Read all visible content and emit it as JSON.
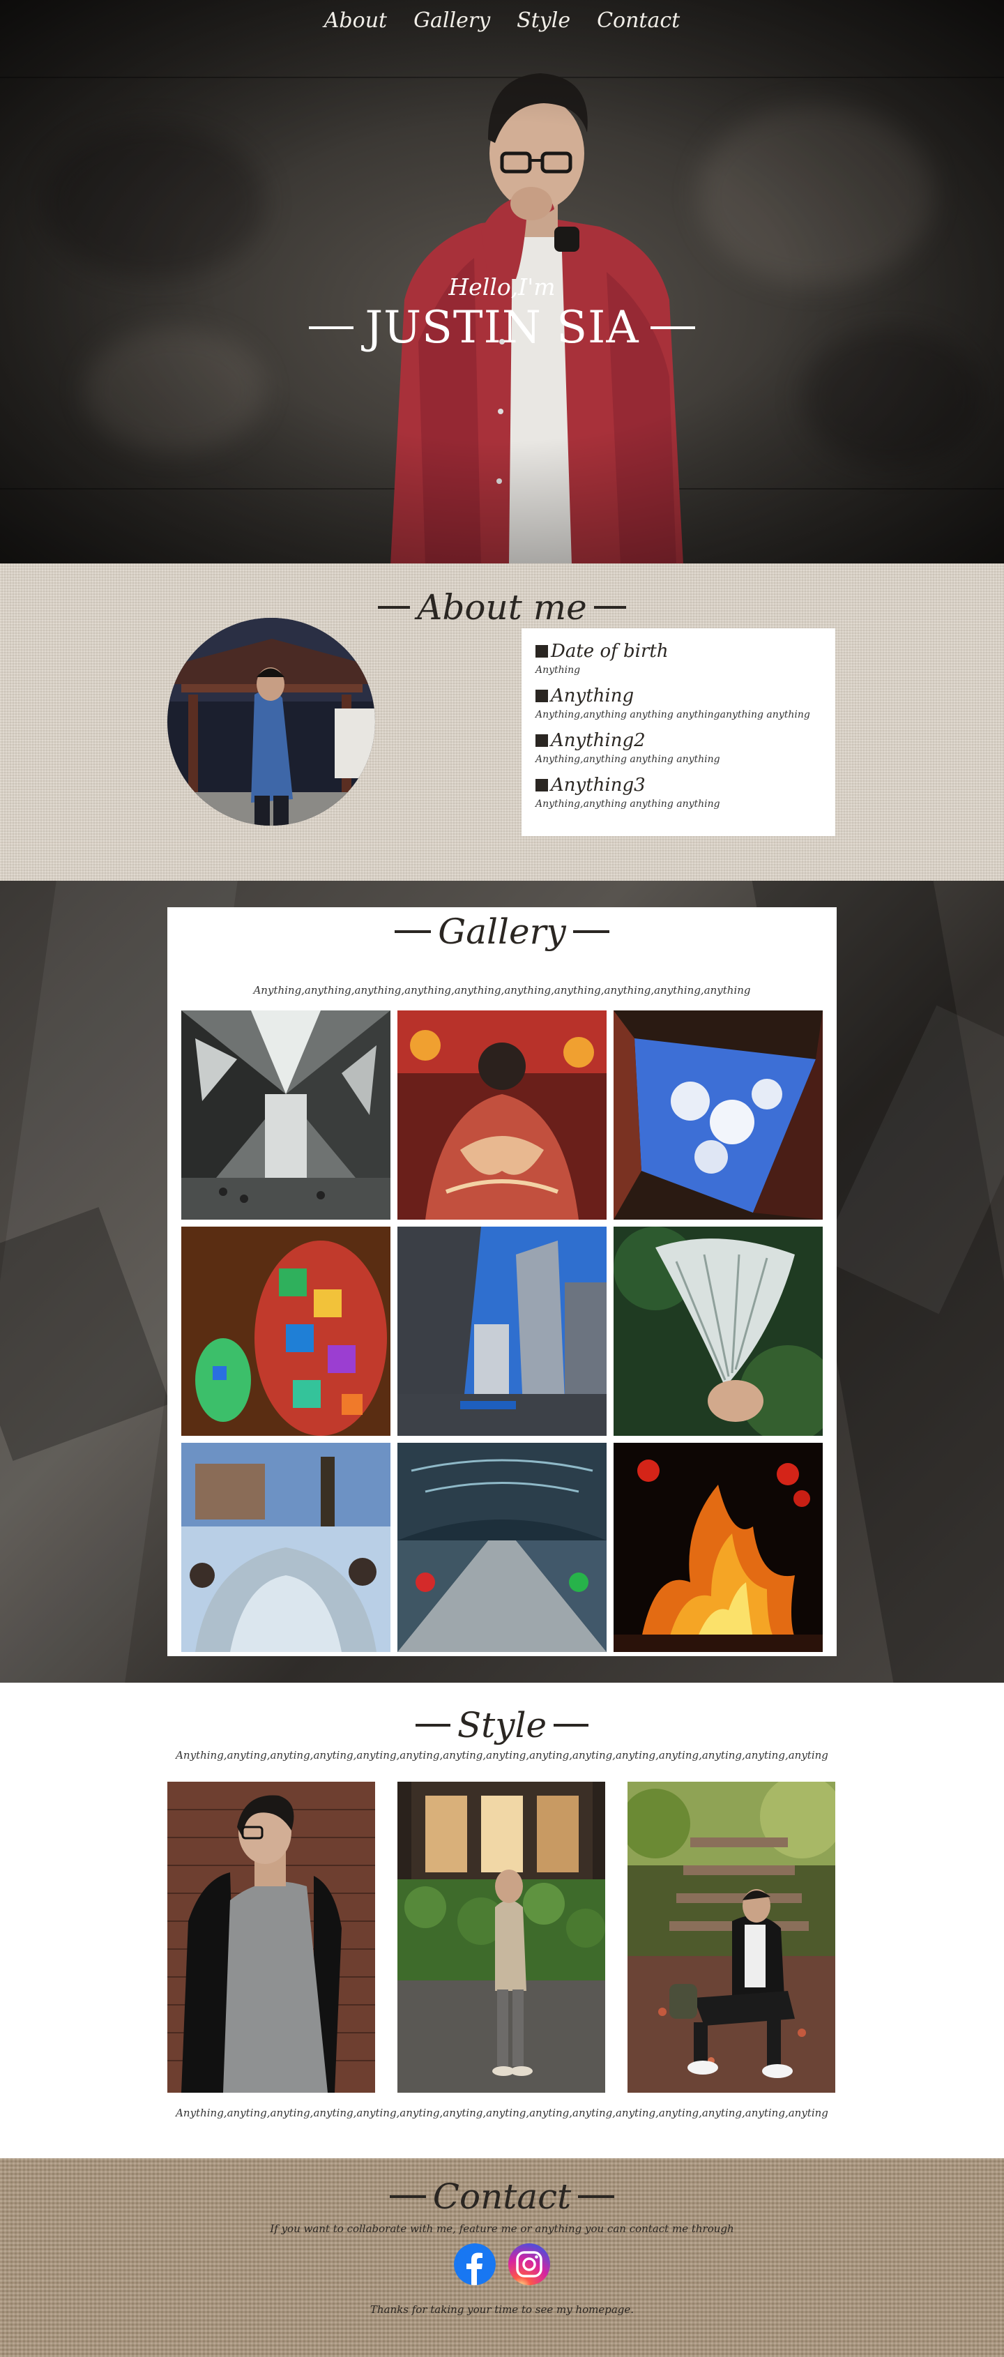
{
  "nav": {
    "items": [
      {
        "label": "About"
      },
      {
        "label": "Gallery"
      },
      {
        "label": "Style"
      },
      {
        "label": "Contact"
      }
    ]
  },
  "hero": {
    "greeting": "Hello,I'm",
    "name": "JUSTIN SIA"
  },
  "about": {
    "title": "About me",
    "items": [
      {
        "label": "Date of birth",
        "value": "Anything"
      },
      {
        "label": "Anything",
        "value": "Anything,anything anything anythinganything anything"
      },
      {
        "label": "Anything2",
        "value": "Anything,anything anything anything"
      },
      {
        "label": "Anything3",
        "value": "Anything,anything anything anything"
      }
    ]
  },
  "gallery": {
    "title": "Gallery",
    "subtitle": "Anything,anything,anything,anything,anything,anything,anything,anything,anything,anything"
  },
  "style": {
    "title": "Style",
    "subtitle_top": "Anything,anyting,anyting,anyting,anyting,anyting,anyting,anyting,anyting,anyting,anyting,anyting,anyting,anyting,anyting",
    "subtitle_bottom": "Anything,anyting,anyting,anyting,anyting,anyting,anyting,anyting,anyting,anyting,anyting,anyting,anyting,anyting,anyting"
  },
  "contact": {
    "title": "Contact",
    "subtitle": "If you want to collaborate with me, feature me or anything you can contact me through",
    "thanks": "Thanks for taking your time to see my homepage.",
    "socials": [
      {
        "icon": "facebook-icon",
        "color": "#1877f2"
      },
      {
        "icon": "instagram-icon",
        "color": "#d6249f"
      }
    ]
  },
  "colors": {
    "accent_red": "#a8313a",
    "heading": "#2a2622",
    "about_bg": "#d9d0c4",
    "contact_bg": "#a8937a"
  }
}
